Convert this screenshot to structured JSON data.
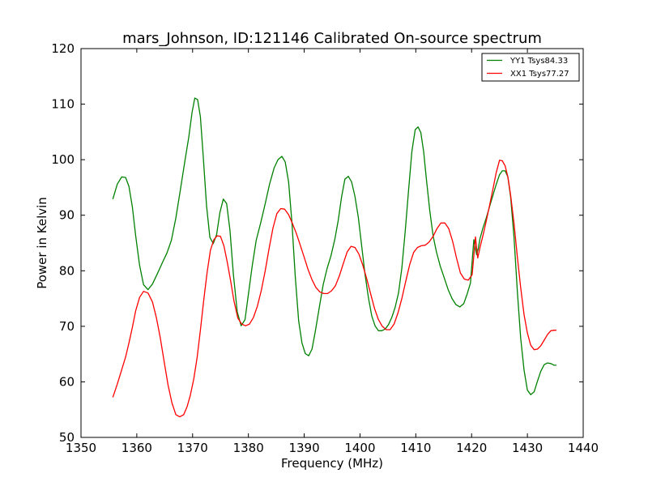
{
  "chart_data": {
    "type": "line",
    "title": "mars_Johnson, ID:121146 Calibrated On-source spectrum",
    "xlabel": "Frequency (MHz)",
    "ylabel": "Power in Kelvin",
    "xlim": [
      1350,
      1440
    ],
    "ylim": [
      50,
      120
    ],
    "xticks": [
      1350,
      1360,
      1370,
      1380,
      1390,
      1400,
      1410,
      1420,
      1430,
      1440
    ],
    "yticks": [
      50,
      60,
      70,
      80,
      90,
      100,
      110,
      120
    ],
    "grid": false,
    "legend": {
      "placement": "top-right"
    },
    "series": [
      {
        "name": "YY1 Tsys84.33",
        "color": "#008000",
        "x": [
          1355.7,
          1356.5,
          1357.3,
          1358.0,
          1358.6,
          1359.2,
          1359.8,
          1360.5,
          1361.2,
          1362.0,
          1362.8,
          1363.7,
          1364.6,
          1365.4,
          1366.2,
          1367.0,
          1367.8,
          1368.6,
          1369.3,
          1369.9,
          1370.4,
          1370.9,
          1371.4,
          1371.9,
          1372.5,
          1373.1,
          1373.7,
          1374.3,
          1374.9,
          1375.5,
          1376.1,
          1376.7,
          1377.3,
          1378.0,
          1378.7,
          1379.4,
          1380.0,
          1380.7,
          1381.4,
          1382.2,
          1383.0,
          1383.8,
          1384.6,
          1385.3,
          1386.0,
          1386.6,
          1387.2,
          1387.8,
          1388.4,
          1389.0,
          1389.6,
          1390.2,
          1390.8,
          1391.4,
          1392.0,
          1392.7,
          1393.4,
          1394.1,
          1394.8,
          1395.5,
          1396.1,
          1396.7,
          1397.3,
          1397.9,
          1398.5,
          1399.1,
          1399.7,
          1400.3,
          1400.9,
          1401.5,
          1402.1,
          1402.7,
          1403.3,
          1403.9,
          1404.5,
          1405.1,
          1405.7,
          1406.3,
          1406.9,
          1407.5,
          1408.1,
          1408.7,
          1409.3,
          1409.9,
          1410.4,
          1410.9,
          1411.4,
          1411.9,
          1412.5,
          1413.1,
          1413.7,
          1414.4,
          1415.1,
          1415.8,
          1416.5,
          1417.2,
          1417.9,
          1418.6,
          1419.2,
          1419.8,
          1420.4,
          1420.9,
          1421.2,
          1421.5,
          1422.0,
          1422.6,
          1423.2,
          1423.8,
          1424.4,
          1425.0,
          1425.5,
          1426.0,
          1426.5,
          1427.0,
          1427.6,
          1428.2,
          1428.8,
          1429.4,
          1430.0,
          1430.6,
          1431.2,
          1431.8,
          1432.4,
          1433.0,
          1433.6,
          1434.2,
          1434.8,
          1435.2
        ],
        "values": [
          92.9,
          95.6,
          96.9,
          96.8,
          95.2,
          91.5,
          86.3,
          81.0,
          77.5,
          76.6,
          77.6,
          79.5,
          81.5,
          83.2,
          85.5,
          89.5,
          94.5,
          99.6,
          104.0,
          108.5,
          111.1,
          110.8,
          107.7,
          100.6,
          91.7,
          86.0,
          84.9,
          86.5,
          90.5,
          92.9,
          92.1,
          87.3,
          79.4,
          72.6,
          70.1,
          71.2,
          75.8,
          81.0,
          85.5,
          88.6,
          92.0,
          95.6,
          98.5,
          100.0,
          100.6,
          99.6,
          96.0,
          88.7,
          79.0,
          71.0,
          67.0,
          65.1,
          64.7,
          65.9,
          69.1,
          73.4,
          77.5,
          80.4,
          82.7,
          85.7,
          89.1,
          93.3,
          96.5,
          97.0,
          96.0,
          93.4,
          89.6,
          84.5,
          79.4,
          75.2,
          71.9,
          70.1,
          69.2,
          69.2,
          69.5,
          70.3,
          71.6,
          73.4,
          76.0,
          80.5,
          87.0,
          94.5,
          101.5,
          105.4,
          105.9,
          104.9,
          101.5,
          96.5,
          90.8,
          86.3,
          83.4,
          80.8,
          78.7,
          76.6,
          75.0,
          73.9,
          73.5,
          74.1,
          75.8,
          77.8,
          85.6,
          82.9,
          84.0,
          85.8,
          87.6,
          89.4,
          91.5,
          93.5,
          95.5,
          97.3,
          98.0,
          98.0,
          96.9,
          93.3,
          86.0,
          76.3,
          67.9,
          62.1,
          58.5,
          57.7,
          58.2,
          60.1,
          61.9,
          63.1,
          63.4,
          63.3,
          63.0,
          63.0
        ]
      },
      {
        "name": "XX1 Tsys77.27",
        "color": "#ff0000",
        "x": [
          1355.7,
          1356.5,
          1357.3,
          1358.0,
          1358.6,
          1359.2,
          1359.8,
          1360.5,
          1361.2,
          1362.0,
          1362.8,
          1363.5,
          1364.2,
          1364.9,
          1365.6,
          1366.3,
          1367.0,
          1367.7,
          1368.4,
          1369.0,
          1369.6,
          1370.2,
          1370.8,
          1371.4,
          1372.0,
          1372.6,
          1373.2,
          1373.8,
          1374.4,
          1375.0,
          1375.6,
          1376.2,
          1376.8,
          1377.4,
          1378.1,
          1378.8,
          1379.5,
          1380.2,
          1380.9,
          1381.6,
          1382.3,
          1383.0,
          1383.7,
          1384.4,
          1385.1,
          1385.8,
          1386.5,
          1387.2,
          1387.9,
          1388.6,
          1389.3,
          1390.0,
          1390.7,
          1391.4,
          1392.1,
          1392.8,
          1393.5,
          1394.2,
          1394.9,
          1395.6,
          1396.3,
          1397.0,
          1397.7,
          1398.4,
          1399.1,
          1399.8,
          1400.5,
          1401.2,
          1401.9,
          1402.6,
          1403.3,
          1404.0,
          1404.7,
          1405.4,
          1406.1,
          1406.8,
          1407.5,
          1408.2,
          1408.9,
          1409.6,
          1410.3,
          1411.0,
          1411.7,
          1412.4,
          1413.1,
          1413.8,
          1414.5,
          1415.2,
          1415.9,
          1416.6,
          1417.3,
          1418.0,
          1418.7,
          1419.4,
          1420.1,
          1420.7,
          1421.1,
          1421.5,
          1422.0,
          1422.6,
          1423.2,
          1423.8,
          1424.4,
          1425.0,
          1425.5,
          1426.0,
          1426.5,
          1427.0,
          1427.6,
          1428.2,
          1428.8,
          1429.4,
          1430.0,
          1430.6,
          1431.2,
          1431.8,
          1432.4,
          1433.0,
          1433.6,
          1434.2,
          1434.8,
          1435.2
        ],
        "values": [
          57.2,
          59.6,
          62.2,
          64.5,
          67.0,
          69.8,
          72.8,
          75.2,
          76.3,
          76.0,
          74.4,
          71.6,
          68.0,
          63.7,
          59.4,
          56.2,
          54.1,
          53.7,
          54.1,
          55.5,
          57.6,
          60.5,
          64.3,
          69.3,
          74.8,
          79.7,
          83.7,
          85.6,
          86.3,
          86.2,
          84.5,
          81.6,
          78.3,
          74.6,
          71.5,
          70.4,
          70.1,
          70.4,
          71.6,
          73.6,
          76.4,
          79.9,
          84.0,
          87.7,
          90.3,
          91.2,
          91.1,
          90.1,
          88.5,
          86.7,
          84.6,
          82.4,
          80.2,
          78.4,
          77.0,
          76.2,
          75.9,
          75.9,
          76.4,
          77.3,
          79.1,
          81.3,
          83.4,
          84.4,
          84.2,
          83.0,
          81.0,
          78.6,
          75.9,
          73.2,
          71.2,
          70.0,
          69.4,
          69.4,
          70.4,
          72.4,
          75.0,
          78.1,
          81.1,
          83.3,
          84.2,
          84.5,
          84.6,
          85.2,
          86.2,
          87.6,
          88.6,
          88.6,
          87.6,
          85.3,
          82.3,
          79.6,
          78.5,
          78.3,
          79.3,
          86.1,
          82.3,
          84.2,
          86.2,
          88.8,
          91.7,
          94.6,
          97.6,
          99.9,
          99.8,
          98.9,
          96.9,
          93.6,
          88.5,
          82.5,
          77.0,
          72.1,
          68.8,
          66.6,
          65.8,
          65.9,
          66.5,
          67.5,
          68.5,
          69.2,
          69.3,
          69.3
        ]
      }
    ]
  }
}
